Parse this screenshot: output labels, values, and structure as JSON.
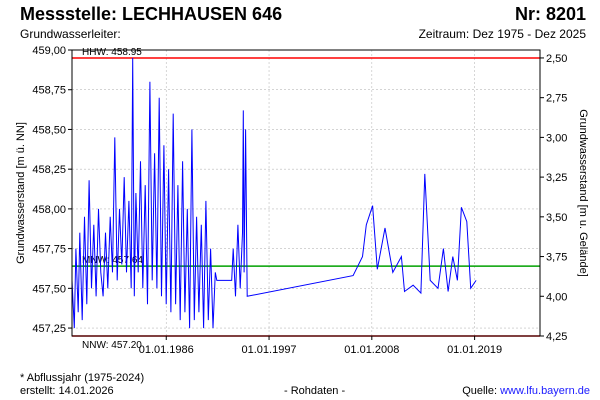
{
  "header": {
    "station": "Messstelle: LECHHAUSEN 646",
    "number": "Nr: 8201",
    "aquifer": "Grundwasserleiter:",
    "period": "Zeitraum: Dez 1975 - Dez 2025"
  },
  "footer": {
    "note": "* Abflussjahr (1975-2024)",
    "created": "erstellt:  14.01.2026",
    "raw": "- Rohdaten -",
    "source_label": "Quelle: ",
    "source_url": "www.lfu.bayern.de"
  },
  "colors": {
    "series": "#0000ff",
    "hhw_nnw": "#ff0000",
    "mnw": "#00a000",
    "grid": "#bbbbbb"
  },
  "chart_data": {
    "type": "line",
    "title": "",
    "ylabel": "Grundwasserstand [m ü. NN]",
    "y2label": "Grundwasserstand [m u. Gelände]",
    "xlim": [
      "1975-12-01",
      "2025-12-31"
    ],
    "ylim": [
      457.2,
      459.0
    ],
    "y2lim": [
      4.25,
      2.45
    ],
    "grid": true,
    "x_ticks": [
      {
        "date": "1986-01-01",
        "label": "01.01.1986"
      },
      {
        "date": "1997-01-01",
        "label": "01.01.1997"
      },
      {
        "date": "2008-01-01",
        "label": "01.01.2008"
      },
      {
        "date": "2019-01-01",
        "label": "01.01.2019"
      }
    ],
    "y_ticks": [
      {
        "value": 459.0,
        "label": "459,00"
      },
      {
        "value": 458.75,
        "label": "458,75"
      },
      {
        "value": 458.5,
        "label": "458,50"
      },
      {
        "value": 458.25,
        "label": "458,25"
      },
      {
        "value": 458.0,
        "label": "458,00"
      },
      {
        "value": 457.75,
        "label": "457,75"
      },
      {
        "value": 457.5,
        "label": "457,50"
      },
      {
        "value": 457.25,
        "label": "457,25"
      }
    ],
    "y2_ticks": [
      {
        "value": 2.5,
        "label": "2,50"
      },
      {
        "value": 2.75,
        "label": "2,75"
      },
      {
        "value": 3.0,
        "label": "3,00"
      },
      {
        "value": 3.25,
        "label": "3,25"
      },
      {
        "value": 3.5,
        "label": "3,50"
      },
      {
        "value": 3.75,
        "label": "3,75"
      },
      {
        "value": 4.0,
        "label": "4,00"
      },
      {
        "value": 4.25,
        "label": "4,25"
      }
    ],
    "reference_lines": [
      {
        "name": "HHW",
        "label": "HHW: 458.95",
        "value": 458.95,
        "color": "#ff0000"
      },
      {
        "name": "MNW",
        "label": "MNW: 457.64",
        "value": 457.64,
        "color": "#00a000"
      },
      {
        "name": "NNW",
        "label": "NNW: 457.20",
        "value": 457.2,
        "color": "#ff0000"
      }
    ],
    "series": [
      {
        "color": "#0000ff",
        "points": [
          [
            "1975-12-01",
            457.55
          ],
          [
            "1976-03-01",
            457.25
          ],
          [
            "1976-05-01",
            457.75
          ],
          [
            "1976-08-01",
            457.35
          ],
          [
            "1976-10-01",
            457.85
          ],
          [
            "1977-01-01",
            457.3
          ],
          [
            "1977-04-01",
            457.95
          ],
          [
            "1977-07-01",
            457.4
          ],
          [
            "1977-10-01",
            458.18
          ],
          [
            "1978-01-01",
            457.5
          ],
          [
            "1978-04-01",
            457.9
          ],
          [
            "1978-07-01",
            457.45
          ],
          [
            "1978-10-01",
            458.0
          ],
          [
            "1979-01-01",
            457.6
          ],
          [
            "1979-04-01",
            457.45
          ],
          [
            "1979-07-01",
            457.85
          ],
          [
            "1979-10-01",
            457.5
          ],
          [
            "1980-01-01",
            457.95
          ],
          [
            "1980-04-01",
            457.6
          ],
          [
            "1980-07-01",
            458.45
          ],
          [
            "1980-10-01",
            457.55
          ],
          [
            "1981-01-01",
            458.0
          ],
          [
            "1981-04-01",
            457.65
          ],
          [
            "1981-07-01",
            458.2
          ],
          [
            "1981-10-01",
            457.6
          ],
          [
            "1982-01-01",
            458.05
          ],
          [
            "1982-04-01",
            457.5
          ],
          [
            "1982-06-01",
            458.95
          ],
          [
            "1982-08-01",
            457.45
          ],
          [
            "1982-10-01",
            458.1
          ],
          [
            "1983-01-01",
            457.6
          ],
          [
            "1983-04-01",
            458.3
          ],
          [
            "1983-07-01",
            457.5
          ],
          [
            "1983-10-01",
            458.15
          ],
          [
            "1984-01-01",
            457.4
          ],
          [
            "1984-04-01",
            458.8
          ],
          [
            "1984-07-01",
            457.55
          ],
          [
            "1984-10-01",
            458.35
          ],
          [
            "1985-01-01",
            457.5
          ],
          [
            "1985-04-01",
            458.7
          ],
          [
            "1985-07-01",
            457.45
          ],
          [
            "1985-10-01",
            458.4
          ],
          [
            "1986-01-01",
            457.4
          ],
          [
            "1986-04-01",
            458.25
          ],
          [
            "1986-07-01",
            457.35
          ],
          [
            "1986-10-01",
            458.6
          ],
          [
            "1987-01-01",
            457.4
          ],
          [
            "1987-04-01",
            458.15
          ],
          [
            "1987-07-01",
            457.3
          ],
          [
            "1987-10-01",
            458.3
          ],
          [
            "1988-01-01",
            457.35
          ],
          [
            "1988-04-01",
            458.0
          ],
          [
            "1988-07-01",
            457.25
          ],
          [
            "1988-10-01",
            458.5
          ],
          [
            "1989-01-01",
            457.3
          ],
          [
            "1989-04-01",
            457.95
          ],
          [
            "1989-07-01",
            457.35
          ],
          [
            "1989-10-01",
            457.9
          ],
          [
            "1990-01-01",
            457.25
          ],
          [
            "1990-04-01",
            458.05
          ],
          [
            "1990-07-01",
            457.3
          ],
          [
            "1990-10-01",
            457.75
          ],
          [
            "1991-01-01",
            457.25
          ],
          [
            "1991-04-01",
            457.6
          ],
          [
            "1991-06-01",
            457.55
          ],
          [
            "1992-06-01",
            457.55
          ],
          [
            "1993-01-01",
            457.55
          ],
          [
            "1993-03-01",
            457.75
          ],
          [
            "1993-06-01",
            457.45
          ],
          [
            "1993-09-01",
            457.9
          ],
          [
            "1993-12-01",
            457.5
          ],
          [
            "1994-03-01",
            457.85
          ],
          [
            "1994-04-01",
            458.62
          ],
          [
            "1994-05-01",
            457.6
          ],
          [
            "1994-07-01",
            458.5
          ],
          [
            "1994-09-01",
            457.45
          ],
          [
            "2006-01-01",
            457.58
          ],
          [
            "2007-01-01",
            457.7
          ],
          [
            "2007-06-01",
            457.9
          ],
          [
            "2008-02-01",
            458.02
          ],
          [
            "2008-08-01",
            457.62
          ],
          [
            "2009-06-01",
            457.88
          ],
          [
            "2010-04-01",
            457.6
          ],
          [
            "2011-03-01",
            457.7
          ],
          [
            "2011-07-01",
            457.48
          ],
          [
            "2012-06-01",
            457.52
          ],
          [
            "2013-04-01",
            457.47
          ],
          [
            "2013-09-01",
            458.22
          ],
          [
            "2014-04-01",
            457.55
          ],
          [
            "2015-02-01",
            457.5
          ],
          [
            "2015-09-01",
            457.75
          ],
          [
            "2016-03-01",
            457.48
          ],
          [
            "2016-09-01",
            457.7
          ],
          [
            "2017-03-01",
            457.55
          ],
          [
            "2017-08-01",
            458.01
          ],
          [
            "2018-03-01",
            457.92
          ],
          [
            "2018-08-01",
            457.5
          ],
          [
            "2019-03-01",
            457.55
          ]
        ]
      }
    ]
  }
}
